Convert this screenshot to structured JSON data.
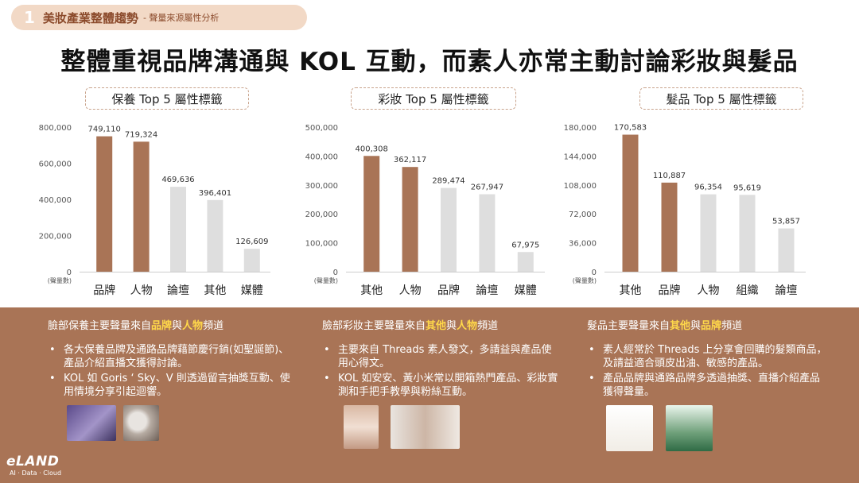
{
  "header": {
    "section_number": "1",
    "section_title": "美妝產業整體趨勢",
    "section_subtitle": "- 聲量來源屬性分析"
  },
  "headline": "整體重視品牌溝通與 KOL 互動，而素人亦常主動討論彩妝與髮品",
  "colors": {
    "brown": "#a97456",
    "grey": "#dedede",
    "highlight": "#ffd84a"
  },
  "chart_data": [
    {
      "type": "bar",
      "title": "保養 Top 5 屬性標籤",
      "ylabel": "(聲量數)",
      "categories": [
        "品牌",
        "人物",
        "論壇",
        "其他",
        "媒體"
      ],
      "values": [
        749110,
        719324,
        469636,
        396401,
        126609
      ],
      "value_labels": [
        "749,110",
        "719,324",
        "469,636",
        "396,401",
        "126,609"
      ],
      "bar_colors": [
        "brown",
        "brown",
        "grey",
        "grey",
        "grey"
      ],
      "yticks": [
        "0",
        "200,000",
        "400,000",
        "600,000",
        "800,000"
      ],
      "ylim": [
        0,
        800000
      ]
    },
    {
      "type": "bar",
      "title": "彩妝 Top 5 屬性標籤",
      "ylabel": "(聲量數)",
      "categories": [
        "其他",
        "人物",
        "品牌",
        "論壇",
        "媒體"
      ],
      "values": [
        400308,
        362117,
        289474,
        267947,
        67975
      ],
      "value_labels": [
        "400,308",
        "362,117",
        "289,474",
        "267,947",
        "67,975"
      ],
      "bar_colors": [
        "brown",
        "brown",
        "grey",
        "grey",
        "grey"
      ],
      "yticks": [
        "0",
        "100,000",
        "200,000",
        "300,000",
        "400,000",
        "500,000"
      ],
      "ylim": [
        0,
        500000
      ]
    },
    {
      "type": "bar",
      "title": "髮品 Top 5 屬性標籤",
      "ylabel": "(聲量數)",
      "categories": [
        "其他",
        "品牌",
        "人物",
        "組織",
        "論壇"
      ],
      "values": [
        170583,
        110887,
        96354,
        95619,
        53857
      ],
      "value_labels": [
        "170,583",
        "110,887",
        "96,354",
        "95,619",
        "53,857"
      ],
      "bar_colors": [
        "brown",
        "brown",
        "grey",
        "grey",
        "grey"
      ],
      "yticks": [
        "0",
        "36,000",
        "72,000",
        "108,000",
        "144,000",
        "180,000"
      ],
      "ylim": [
        0,
        180000
      ]
    }
  ],
  "insights": [
    {
      "lead_pre": "臉部保養主要聲量來自",
      "hl1": "品牌",
      "mid": "與",
      "hl2": "人物",
      "lead_post": "頻道",
      "bullets": [
        "各大保養品牌及通路品牌藉節慶行銷(如聖誕節)、產品介紹直播文獲得討論。",
        "KOL 如 Goris ‘ Sky、V 則透過留言抽獎互動、使用情境分享引起迴響。"
      ]
    },
    {
      "lead_pre": "臉部彩妝主要聲量來自",
      "hl1": "其他",
      "mid": "與",
      "hl2": "人物",
      "lead_post": "頻道",
      "bullets": [
        "主要來自 Threads 素人發文，多請益與產品使用心得文。",
        "KOL 如安安、黃小米常以開箱熱門產品、彩妝實測和手把手教學與粉絲互動。"
      ]
    },
    {
      "lead_pre": "髮品主要聲量來自",
      "hl1": "其他",
      "mid": "與",
      "hl2": "品牌",
      "lead_post": "頻道",
      "bullets": [
        "素人經常於 Threads 上分享會回購的髮類商品，及請益適合頭皮出油、敏感的產品。",
        "產品品牌與通路品牌多透過抽獎、直播介紹產品獲得聲量。"
      ]
    }
  ],
  "logo": {
    "name": "eLAND",
    "tagline": "AI · Data · Cloud"
  }
}
